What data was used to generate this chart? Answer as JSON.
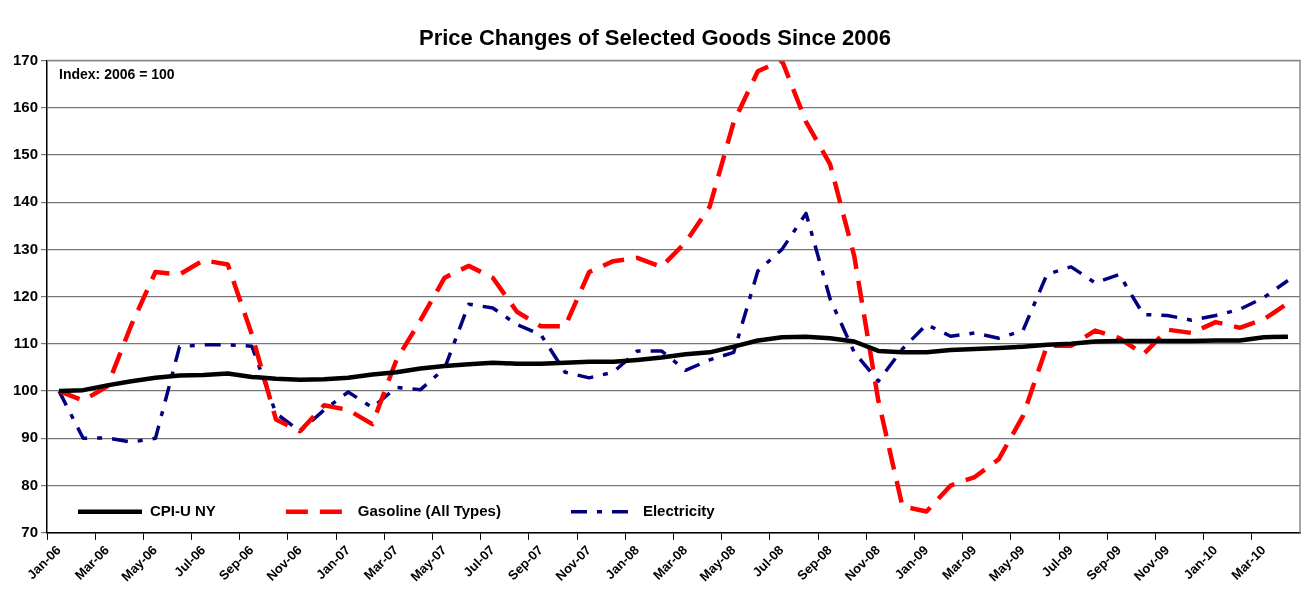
{
  "chart_data": {
    "type": "line",
    "title": "Price Changes of Selected Goods Since 2006",
    "categories": [
      "Jan-06",
      null,
      "Mar-06",
      null,
      "May-06",
      null,
      "Jul-06",
      null,
      "Sep-06",
      null,
      "Nov-06",
      null,
      "Jan-07",
      null,
      "Mar-07",
      null,
      "May-07",
      null,
      "Jul-07",
      null,
      "Sep-07",
      null,
      "Nov-07",
      null,
      "Jan-08",
      null,
      "Mar-08",
      null,
      "May-08",
      null,
      "Jul-08",
      null,
      "Sep-08",
      null,
      "Nov-08",
      null,
      "Jan-09",
      null,
      "Mar-09",
      null,
      "May-09",
      null,
      "Jul-09",
      null,
      "Sep-09",
      null,
      "Nov-09",
      null,
      "Jan-10",
      null,
      "Mar-10",
      null
    ],
    "series": [
      {
        "name": "CPI-U NY",
        "color": "#000000",
        "line_style": "solid",
        "values": [
          100,
          100.2,
          101.2,
          102.1,
          102.8,
          103.3,
          103.4,
          103.7,
          103,
          102.6,
          102.4,
          102.5,
          102.8,
          103.5,
          104,
          104.8,
          105.3,
          105.7,
          106,
          105.8,
          105.8,
          106,
          106.2,
          106.2,
          106.6,
          107.1,
          107.8,
          108.2,
          109.4,
          110.7,
          111.4,
          111.5,
          111.2,
          110.5,
          108.5,
          108.2,
          108.2,
          108.7,
          108.9,
          109.1,
          109.4,
          109.8,
          110,
          110.5,
          110.6,
          110.6,
          110.6,
          110.6,
          110.7,
          110.7,
          111.4,
          111.5
        ]
      },
      {
        "name": "Gasoline (All Types)",
        "color": "#ff0000",
        "line_style": "dashed",
        "values": [
          100,
          98,
          101,
          114,
          125.2,
          124.7,
          127.7,
          126.8,
          112,
          94,
          91.5,
          97,
          96,
          93,
          106.6,
          115,
          124,
          126.5,
          124,
          116.8,
          113.7,
          113.7,
          125.2,
          127.5,
          128.2,
          126.3,
          131.5,
          139,
          157,
          167.7,
          170,
          157,
          148,
          128.6,
          98,
          75.6,
          74.5,
          80,
          81.8,
          85.6,
          94.7,
          109.6,
          109.6,
          112.8,
          111.2,
          107.8,
          113,
          112.3,
          114.6,
          113.4,
          115.2,
          118.6
        ]
      },
      {
        "name": "Electricity",
        "color": "#000080",
        "line_style": "dashed",
        "values": [
          100,
          90,
          90.1,
          89.2,
          90,
          109.4,
          109.8,
          109.8,
          109.5,
          95.3,
          91.5,
          96,
          99.8,
          96.5,
          100.8,
          100.3,
          104.8,
          118.4,
          117.6,
          114.1,
          111.9,
          104,
          102.8,
          104,
          108.5,
          108.5,
          104.4,
          106.6,
          108.2,
          125.4,
          130,
          137.6,
          119.5,
          108.2,
          102.1,
          108.9,
          114.1,
          111.6,
          112.3,
          111.2,
          112.8,
          124.7,
          126.3,
          122.9,
          124.7,
          116.2,
          116,
          115,
          116,
          117.3,
          119.8,
          123.4
        ]
      }
    ],
    "ylim": [
      70,
      170
    ],
    "yticks": [
      70,
      80,
      90,
      100,
      110,
      120,
      130,
      140,
      150,
      160,
      170
    ],
    "grid": "y",
    "legend": "bottom left",
    "marker": "none",
    "annotations": [
      "Index: 2006 = 100"
    ]
  }
}
